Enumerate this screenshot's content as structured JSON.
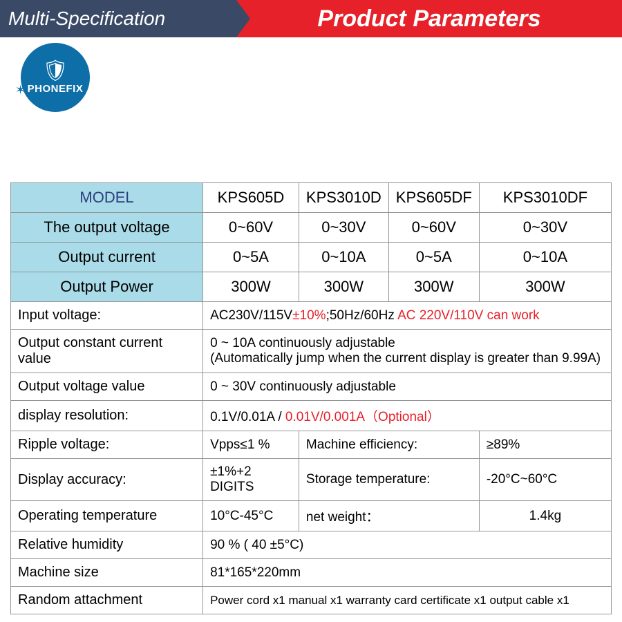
{
  "header": {
    "left": "Multi-Specification",
    "right": "Product Parameters"
  },
  "logo": {
    "brand": "PHONEFIX"
  },
  "styling": {
    "header_left_bg": "#3a4a66",
    "header_right_bg": "#e62129",
    "label_cell_bg": "#a9dbe8",
    "model_header_color": "#2c3e7e",
    "border_color": "#939598",
    "red_text": "#e62129",
    "logo_bg": "#0d6ea8",
    "base_font": "Arial",
    "header_left_fontsize": 28,
    "header_right_fontsize": 34,
    "cell_fontsize": 20
  },
  "models": {
    "header": "MODEL",
    "cols": [
      "KPS605D",
      "KPS3010D",
      "KPS605DF",
      "KPS3010DF"
    ]
  },
  "top_rows": [
    {
      "label": "The output voltage",
      "vals": [
        "0~60V",
        "0~30V",
        "0~60V",
        "0~30V"
      ]
    },
    {
      "label": "Output current",
      "vals": [
        "0~5A",
        "0~10A",
        "0~5A",
        "0~10A"
      ]
    },
    {
      "label": "Output Power",
      "vals": [
        "300W",
        "300W",
        "300W",
        "300W"
      ]
    }
  ],
  "specs": {
    "input_voltage": {
      "label": "Input voltage:",
      "val_a": "AC230V/115V",
      "val_b": "±10%",
      "val_c": ";50Hz/60Hz ",
      "val_d": "AC 220V/110V can work"
    },
    "occ": {
      "label": "Output constant current value",
      "line1": "0 ~ 10A continuously adjustable",
      "line2": "(Automatically jump when the current display is greater than 9.99A)"
    },
    "ovv": {
      "label": "Output voltage value",
      "val": "0 ~ 30V continuously adjustable"
    },
    "disp_res": {
      "label": "display resolution:",
      "val_a": "0.1V/0.01A / ",
      "val_b": "0.01V/0.001A（Optional）"
    },
    "ripple": {
      "label": "Ripple voltage:",
      "val": "Vpps≤1 %"
    },
    "mach_eff": {
      "label": "Machine efficiency:",
      "val": "≥89%"
    },
    "disp_acc": {
      "label": "Display accuracy:",
      "val": "±1%+2 DIGITS"
    },
    "storage": {
      "label": "Storage temperature:",
      "val": "-20°C~60°C"
    },
    "op_temp": {
      "label": "Operating temperature",
      "val": "10°C-45°C"
    },
    "net_w": {
      "label": "net weight：",
      "val": "1.4kg"
    },
    "rh": {
      "label": "Relative humidity",
      "val": "90 % ( 40 ±5°C)"
    },
    "size": {
      "label": "Machine size",
      "val": "81*165*220mm"
    },
    "attach": {
      "label": "Random attachment",
      "val": "Power cord x1 manual x1 warranty card certificate x1 output cable x1"
    }
  }
}
